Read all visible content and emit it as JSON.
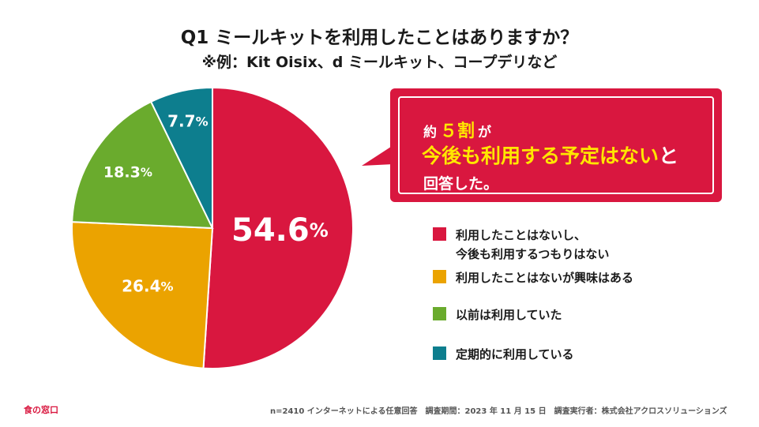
{
  "title": "Q1 ミールキットを利用したことはありますか？",
  "subtitle": "※例：Kit Oisix、d ミールキット、コープデリなど",
  "callout": {
    "line1_prefix": "約",
    "line1_highlight": "５割",
    "line1_suffix": "が",
    "line2_highlight": "今後も利用する予定はない",
    "line2_suffix": "と",
    "line3": "回答した。"
  },
  "chart_data": {
    "type": "pie",
    "title": "Q1 ミールキットを利用したことはありますか？",
    "unit": "%",
    "slices": [
      {
        "label": "利用したことはないし、\n今後も利用するつもりはない",
        "value": 54.6,
        "value_label": "54.6",
        "color": "#d9173f"
      },
      {
        "label": "利用したことはないが興味はある",
        "value": 26.4,
        "value_label": "26.4",
        "color": "#eba300"
      },
      {
        "label": "以前は利用していた",
        "value": 18.3,
        "value_label": "18.3",
        "color": "#6aab2d"
      },
      {
        "label": "定期的に利用している",
        "value": 7.7,
        "value_label": "7.7",
        "color": "#0d7e8e"
      }
    ],
    "legend_position": "right"
  },
  "footer": {
    "brand": "食の窓口",
    "note": "n=2410 インターネットによる任意回答　調査期間：2023 年 11 月 15 日　調査実行者：株式会社アクロスソリューションズ"
  }
}
